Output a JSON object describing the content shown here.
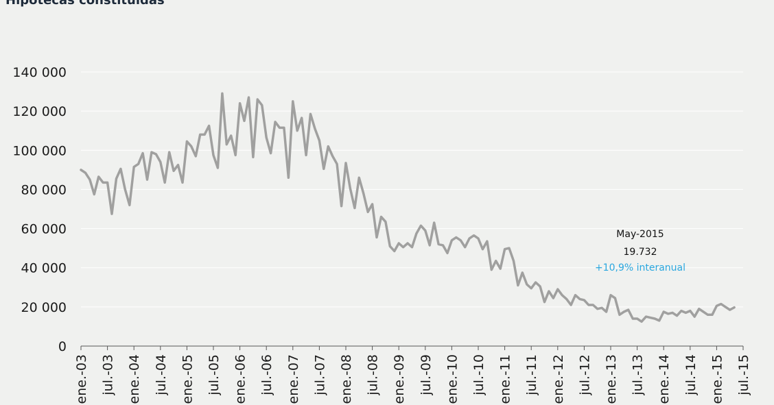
{
  "chart_data": {
    "type": "line",
    "title": "Hipotecas constituidas",
    "xlabel": "",
    "ylabel": "",
    "ylim": [
      0,
      140000
    ],
    "yticks": [
      "0",
      "20 000",
      "40 000",
      "60 000",
      "80 000",
      "100 000",
      "120 000",
      "140 000"
    ],
    "ytick_values": [
      0,
      20000,
      40000,
      60000,
      80000,
      100000,
      120000,
      140000
    ],
    "xticks": [
      "ene.-03",
      "jul.-03",
      "ene.-04",
      "jul.-04",
      "ene.-05",
      "jul.-05",
      "ene.-06",
      "jul.-06",
      "ene.-07",
      "jul.-07",
      "ene.-08",
      "jul.-08",
      "ene.-09",
      "jul.-09",
      "ene.-10",
      "jul.-10",
      "ene.-11",
      "jul.-11",
      "ene.-12",
      "jul.-12",
      "ene.-13",
      "jul.-13",
      "ene.-14",
      "jul.-14",
      "ene.-15",
      "jul.-15"
    ],
    "x_start": "2003-01",
    "x_end": "2015-07",
    "grid": true,
    "line_color": "#a0a09f",
    "grid_color": "#ffffff",
    "series": [
      {
        "name": "",
        "values": [
          90000,
          88500,
          85000,
          77500,
          86500,
          83500,
          83500,
          67500,
          85500,
          90500,
          80000,
          72000,
          91500,
          93000,
          98500,
          85000,
          99000,
          98000,
          94000,
          83500,
          99000,
          89500,
          92500,
          83500,
          104500,
          102000,
          97000,
          108000,
          108000,
          112500,
          97500,
          91000,
          129000,
          103000,
          107500,
          97500,
          124000,
          115000,
          127000,
          96500,
          126000,
          123000,
          106500,
          98500,
          114500,
          111500,
          111500,
          86000,
          125000,
          110000,
          116500,
          97500,
          118500,
          111000,
          105000,
          90500,
          102000,
          97000,
          93000,
          71500,
          93500,
          80500,
          70500,
          86000,
          78000,
          68500,
          72500,
          55500,
          66000,
          63500,
          51000,
          48500,
          52500,
          50500,
          52500,
          50500,
          57500,
          61500,
          59000,
          51500,
          63000,
          52000,
          51500,
          47500,
          54000,
          55500,
          54000,
          50500,
          55000,
          56500,
          55000,
          49500,
          53500,
          39000,
          43500,
          39500,
          49500,
          50000,
          43500,
          31000,
          37500,
          31500,
          29500,
          32500,
          30500,
          22500,
          28000,
          24500,
          29000,
          26000,
          24000,
          21000,
          26000,
          24000,
          23500,
          21000,
          21000,
          19000,
          19500,
          17500,
          26000,
          24500,
          16000,
          17500,
          18500,
          14000,
          14000,
          12500,
          15000,
          14500,
          14000,
          13000,
          17500,
          16500,
          17000,
          15500,
          18000,
          17000,
          18000,
          15000,
          19000,
          17500,
          16000,
          16000,
          20500,
          21500,
          20000,
          18500,
          19732
        ]
      }
    ],
    "annotation": {
      "label": "May-2015",
      "value": "19.732",
      "change": "+10,9% interanual",
      "change_color": "#2aa7df"
    }
  }
}
